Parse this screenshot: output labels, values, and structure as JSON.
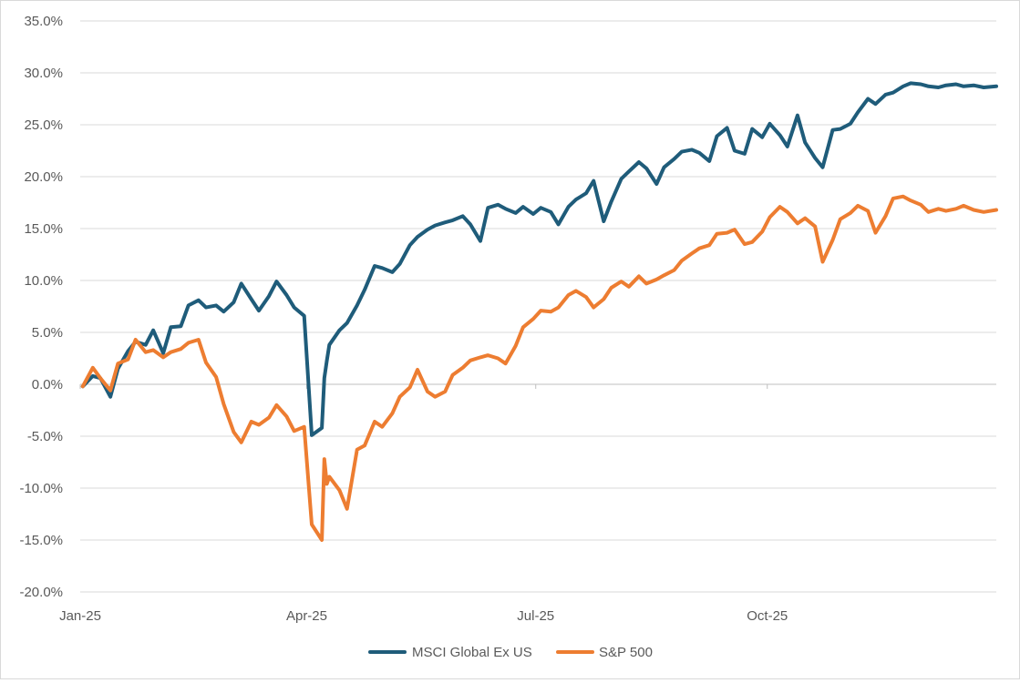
{
  "chart_data": {
    "type": "line",
    "title": "",
    "xlabel": "",
    "ylabel": "",
    "ylim": [
      -20,
      35
    ],
    "yticks": [
      -20,
      -15,
      -10,
      -5,
      0,
      5,
      10,
      15,
      20,
      25,
      30,
      35
    ],
    "ytick_labels": [
      "-20.0%",
      "-15.0%",
      "-10.0%",
      "-5.0%",
      "0.0%",
      "5.0%",
      "10.0%",
      "15.0%",
      "20.0%",
      "25.0%",
      "30.0%",
      "35.0%"
    ],
    "xlim": [
      "2025-01-01",
      "2025-12-31"
    ],
    "xtick_dates": [
      "2025-01-01",
      "2025-04-01",
      "2025-07-01",
      "2025-10-01"
    ],
    "xtick_labels": [
      "Jan-25",
      "Apr-25",
      "Jul-25",
      "Oct-25"
    ],
    "grid": "horizontal",
    "legend_position": "bottom",
    "x": [
      "2025-01-02",
      "2025-01-06",
      "2025-01-09",
      "2025-01-13",
      "2025-01-16",
      "2025-01-20",
      "2025-01-23",
      "2025-01-27",
      "2025-01-30",
      "2025-02-03",
      "2025-02-06",
      "2025-02-10",
      "2025-02-13",
      "2025-02-17",
      "2025-02-20",
      "2025-02-24",
      "2025-02-27",
      "2025-03-03",
      "2025-03-06",
      "2025-03-10",
      "2025-03-13",
      "2025-03-17",
      "2025-03-20",
      "2025-03-24",
      "2025-03-27",
      "2025-03-31",
      "2025-04-03",
      "2025-04-07",
      "2025-04-08",
      "2025-04-09",
      "2025-04-10",
      "2025-04-14",
      "2025-04-17",
      "2025-04-21",
      "2025-04-24",
      "2025-04-28",
      "2025-05-01",
      "2025-05-05",
      "2025-05-08",
      "2025-05-12",
      "2025-05-15",
      "2025-05-19",
      "2025-05-22",
      "2025-05-26",
      "2025-05-29",
      "2025-06-02",
      "2025-06-05",
      "2025-06-09",
      "2025-06-12",
      "2025-06-16",
      "2025-06-19",
      "2025-06-23",
      "2025-06-26",
      "2025-06-30",
      "2025-07-03",
      "2025-07-07",
      "2025-07-10",
      "2025-07-14",
      "2025-07-17",
      "2025-07-21",
      "2025-07-24",
      "2025-07-28",
      "2025-07-31",
      "2025-08-04",
      "2025-08-07",
      "2025-08-11",
      "2025-08-14",
      "2025-08-18",
      "2025-08-21",
      "2025-08-25",
      "2025-08-28",
      "2025-09-01",
      "2025-09-04",
      "2025-09-08",
      "2025-09-11",
      "2025-09-15",
      "2025-09-18",
      "2025-09-22",
      "2025-09-25",
      "2025-09-29",
      "2025-10-02",
      "2025-10-06",
      "2025-10-09",
      "2025-10-13",
      "2025-10-16",
      "2025-10-20",
      "2025-10-23",
      "2025-10-27",
      "2025-10-30",
      "2025-11-03",
      "2025-11-06",
      "2025-11-10",
      "2025-11-13",
      "2025-11-17",
      "2025-11-20",
      "2025-11-24",
      "2025-11-27",
      "2025-12-01",
      "2025-12-04",
      "2025-12-08",
      "2025-12-11",
      "2025-12-15",
      "2025-12-18",
      "2025-12-22",
      "2025-12-26",
      "2025-12-31"
    ],
    "series": [
      {
        "name": "MSCI Global Ex US",
        "color": "#1f5c7a",
        "values": [
          -0.2,
          0.8,
          0.6,
          -1.2,
          1.5,
          3.2,
          4.1,
          3.8,
          5.2,
          3.0,
          5.5,
          5.6,
          7.6,
          8.1,
          7.4,
          7.6,
          7.0,
          7.9,
          9.7,
          8.2,
          7.1,
          8.5,
          9.9,
          8.6,
          7.4,
          6.6,
          -4.9,
          -4.2,
          0.6,
          2.3,
          3.8,
          5.2,
          5.9,
          7.6,
          9.1,
          11.4,
          11.2,
          10.8,
          11.6,
          13.4,
          14.2,
          14.9,
          15.3,
          15.6,
          15.8,
          16.2,
          15.4,
          13.8,
          17.0,
          17.3,
          16.9,
          16.5,
          17.1,
          16.4,
          17.0,
          16.6,
          15.4,
          17.1,
          17.8,
          18.4,
          19.6,
          15.7,
          17.6,
          19.8,
          20.5,
          21.4,
          20.8,
          19.3,
          20.9,
          21.7,
          22.4,
          22.6,
          22.3,
          21.5,
          23.9,
          24.7,
          22.5,
          22.2,
          24.6,
          23.8,
          25.1,
          24.0,
          22.9,
          25.9,
          23.3,
          21.8,
          20.9,
          24.5,
          24.6,
          25.1,
          26.2,
          27.5,
          27.0,
          27.9,
          28.1,
          28.7,
          29.0,
          28.9,
          28.7,
          28.6,
          28.8,
          28.9,
          28.7,
          28.8,
          28.6,
          28.7
        ]
      },
      {
        "name": "S&P 500",
        "color": "#ed7d31",
        "values": [
          -0.2,
          1.6,
          0.6,
          -0.6,
          2.0,
          2.4,
          4.3,
          3.1,
          3.3,
          2.6,
          3.1,
          3.4,
          4.0,
          4.3,
          2.1,
          0.7,
          -1.9,
          -4.6,
          -5.6,
          -3.6,
          -3.9,
          -3.2,
          -2.0,
          -3.1,
          -4.5,
          -4.1,
          -13.5,
          -15.0,
          -7.2,
          -9.6,
          -8.9,
          -10.2,
          -12.0,
          -6.3,
          -5.9,
          -3.6,
          -4.1,
          -2.8,
          -1.2,
          -0.3,
          1.4,
          -0.7,
          -1.2,
          -0.7,
          0.9,
          1.6,
          2.3,
          2.6,
          2.8,
          2.5,
          2.0,
          3.7,
          5.5,
          6.3,
          7.1,
          7.0,
          7.4,
          8.6,
          9.0,
          8.4,
          7.4,
          8.2,
          9.3,
          9.9,
          9.4,
          10.4,
          9.7,
          10.1,
          10.5,
          11.0,
          11.9,
          12.6,
          13.1,
          13.4,
          14.5,
          14.6,
          14.9,
          13.5,
          13.7,
          14.7,
          16.1,
          17.1,
          16.6,
          15.5,
          16.0,
          15.2,
          11.8,
          13.9,
          15.9,
          16.5,
          17.2,
          16.7,
          14.6,
          16.2,
          17.9,
          18.1,
          17.7,
          17.3,
          16.6,
          16.9,
          16.7,
          16.9,
          17.2,
          16.8,
          16.6,
          16.8
        ]
      }
    ]
  }
}
